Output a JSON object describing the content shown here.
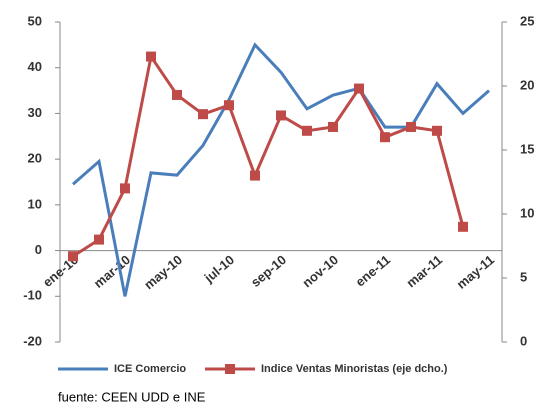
{
  "chart_data": {
    "type": "line",
    "categories": [
      "ene-10",
      null,
      "mar-10",
      null,
      "may-10",
      null,
      "jul-10",
      null,
      "sep-10",
      null,
      "nov-10",
      null,
      "ene-11",
      null,
      "mar-11",
      null,
      "may-11"
    ],
    "series": [
      {
        "name": "ICE Comercio",
        "color": "#4a7ebb",
        "values": [
          14.5,
          19.5,
          -10,
          17,
          16.5,
          23,
          33,
          45,
          39,
          31,
          34,
          35.5,
          27,
          27,
          36.5,
          30,
          35
        ]
      },
      {
        "name": "Indice Ventas Minoristas (eje dcho.)",
        "color": "#be4b48",
        "axis": "y2",
        "values": [
          6.7,
          8,
          12,
          22.3,
          19.3,
          17.8,
          18.5,
          13,
          17.7,
          16.5,
          16.8,
          19.8,
          16,
          16.8,
          16.5,
          9,
          null
        ]
      }
    ],
    "ylim": [
      -20,
      50
    ],
    "yticks": [
      -20,
      -10,
      0,
      10,
      20,
      30,
      40,
      50
    ],
    "y2lim": [
      0,
      25
    ],
    "y2ticks": [
      0,
      5,
      10,
      15,
      20,
      25
    ],
    "legend": "bottom",
    "footnote": "fuente: CEEN UDD e INE"
  }
}
